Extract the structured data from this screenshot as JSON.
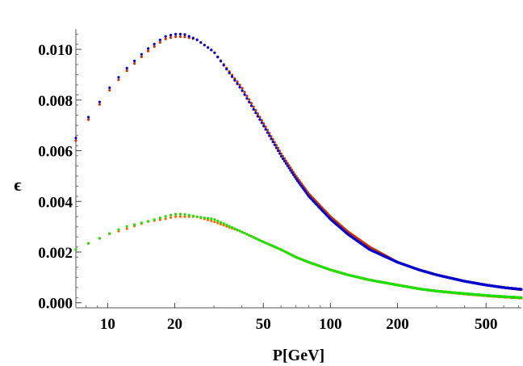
{
  "chart_data": {
    "type": "scatter",
    "title": "",
    "xlabel": "P[GeV]",
    "ylabel": "ϵ",
    "xscale": "log",
    "xlim": [
      7.2,
      720
    ],
    "ylim": [
      -0.0002,
      0.0108
    ],
    "grid": false,
    "legend": "none",
    "x_ticks": [
      {
        "value": 10,
        "label": "10"
      },
      {
        "value": 20,
        "label": "20"
      },
      {
        "value": 50,
        "label": "50"
      },
      {
        "value": 100,
        "label": "100"
      },
      {
        "value": 200,
        "label": "200"
      },
      {
        "value": 500,
        "label": "500"
      }
    ],
    "y_ticks": [
      {
        "value": 0.0,
        "label": "0.000"
      },
      {
        "value": 0.002,
        "label": "0.002"
      },
      {
        "value": 0.004,
        "label": "0.004"
      },
      {
        "value": 0.006,
        "label": "0.006"
      },
      {
        "value": 0.008,
        "label": "0.008"
      },
      {
        "value": 0.01,
        "label": "0.010"
      }
    ],
    "series": [
      {
        "color": "#cc3300",
        "x": [
          7.2,
          8,
          9,
          10,
          12,
          15,
          18,
          20,
          22,
          25,
          30,
          40,
          50,
          60,
          70,
          80,
          100,
          120,
          150,
          200,
          250,
          300,
          400,
          500,
          600,
          720
        ],
        "y": [
          0.0064,
          0.0071,
          0.0077,
          0.0083,
          0.0091,
          0.0099,
          0.0104,
          0.0105,
          0.0105,
          0.0104,
          0.0099,
          0.0085,
          0.0071,
          0.0059,
          0.005,
          0.0043,
          0.0034,
          0.0028,
          0.0022,
          0.0016,
          0.0013,
          0.0011,
          0.00085,
          0.0007,
          0.0006,
          0.00052
        ]
      },
      {
        "color": "#0000cc",
        "x": [
          7.2,
          8,
          9,
          10,
          12,
          15,
          18,
          20,
          22,
          25,
          30,
          40,
          50,
          60,
          70,
          80,
          100,
          120,
          150,
          200,
          250,
          300,
          400,
          500,
          600,
          720
        ],
        "y": [
          0.0065,
          0.0072,
          0.0078,
          0.0084,
          0.0092,
          0.01,
          0.0105,
          0.0106,
          0.0106,
          0.0104,
          0.0099,
          0.0084,
          0.007,
          0.0058,
          0.0049,
          0.0042,
          0.0033,
          0.0027,
          0.0021,
          0.0016,
          0.0013,
          0.0011,
          0.00085,
          0.0007,
          0.0006,
          0.00053
        ]
      },
      {
        "color": "#ff6600",
        "x": [
          7.2,
          8,
          9,
          10,
          12,
          15,
          18,
          20,
          22,
          25,
          30,
          40,
          50,
          60,
          70,
          80,
          100,
          120,
          150,
          200,
          250,
          300,
          400,
          500,
          600,
          720
        ],
        "y": [
          0.0021,
          0.0023,
          0.0025,
          0.0027,
          0.0029,
          0.0032,
          0.0033,
          0.0034,
          0.0034,
          0.0034,
          0.0032,
          0.0028,
          0.0024,
          0.0021,
          0.0018,
          0.0016,
          0.0013,
          0.0011,
          0.0009,
          0.0007,
          0.00055,
          0.00046,
          0.00035,
          0.00028,
          0.00023,
          0.00019
        ]
      },
      {
        "color": "#22dd00",
        "x": [
          7.2,
          8,
          9,
          10,
          12,
          15,
          18,
          20,
          22,
          25,
          30,
          40,
          50,
          60,
          70,
          80,
          100,
          120,
          150,
          200,
          250,
          300,
          400,
          500,
          600,
          720
        ],
        "y": [
          0.0021,
          0.0023,
          0.0025,
          0.0027,
          0.003,
          0.0032,
          0.0034,
          0.0035,
          0.0035,
          0.0034,
          0.0033,
          0.0028,
          0.0024,
          0.0021,
          0.0018,
          0.0016,
          0.0013,
          0.0011,
          0.0009,
          0.0007,
          0.00055,
          0.00046,
          0.00036,
          0.00029,
          0.00024,
          0.0002
        ]
      }
    ]
  }
}
